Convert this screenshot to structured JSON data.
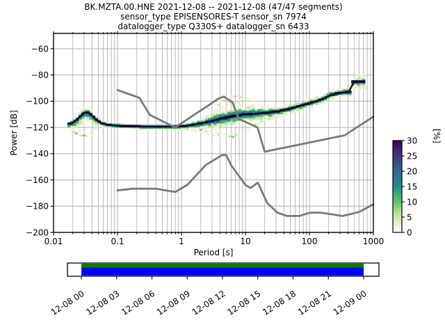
{
  "title": {
    "line1": "BK.MZTA.00.HNE   2021-12-08 -- 2021-12-08  (47/47 segments)",
    "line2": "sensor_type EPISENSORES-T sensor_sn 7974",
    "line3": "datalogger_type Q330S+ datalogger_sn 6433"
  },
  "chart_data": {
    "type": "heatmap",
    "description": "Probabilistic power spectral density (PPSD) 2D histogram of seismic noise power vs period, with Peterson NLNM/NHNM reference noise model curves and a percent-probability colorbar",
    "xlabel": "Period [s]",
    "ylabel": "Power [dB]",
    "xlim": [
      0.01,
      1000
    ],
    "ylim": [
      -200,
      -50
    ],
    "x_scale": "log",
    "grid": true,
    "grid_color": "#b0b0b0",
    "x_tick_labels": [
      "0.01",
      "0.1",
      "1",
      "10",
      "100",
      "1000"
    ],
    "x_tick_values": [
      0.01,
      0.1,
      1,
      10,
      100,
      1000
    ],
    "y_tick_labels": [
      "−60",
      "−80",
      "−100",
      "−120",
      "−140",
      "−160",
      "−180",
      "−200"
    ],
    "y_tick_values": [
      -60,
      -80,
      -100,
      -120,
      -140,
      -160,
      -180,
      -200
    ],
    "colorbar": {
      "label": "[%]",
      "tick_labels": [
        "0",
        "5",
        "10",
        "15",
        "20",
        "25",
        "30"
      ],
      "tick_values": [
        0,
        5,
        10,
        15,
        20,
        25,
        30
      ],
      "range": [
        0,
        30
      ],
      "gradient_bottom_to_top": [
        [
          0.0,
          "#ffffff"
        ],
        [
          0.167,
          "#cfe8a9"
        ],
        [
          0.333,
          "#5ec962"
        ],
        [
          0.5,
          "#21918c"
        ],
        [
          0.667,
          "#31688e"
        ],
        [
          0.833,
          "#443983"
        ],
        [
          1.0,
          "#440154"
        ]
      ]
    },
    "noise_models": {
      "color": "#7a7a7a",
      "nlnm": [
        [
          0.1,
          -168.0
        ],
        [
          0.17,
          -166.7
        ],
        [
          0.4,
          -166.7
        ],
        [
          0.8,
          -169.2
        ],
        [
          1.24,
          -163.7
        ],
        [
          2.4,
          -148.6
        ],
        [
          4.3,
          -141.1
        ],
        [
          5.0,
          -141.1
        ],
        [
          6.0,
          -149.0
        ],
        [
          10.0,
          -163.8
        ],
        [
          12.0,
          -166.2
        ],
        [
          15.6,
          -162.1
        ],
        [
          21.9,
          -177.5
        ],
        [
          31.6,
          -185.0
        ],
        [
          45.0,
          -187.5
        ],
        [
          70.0,
          -187.5
        ],
        [
          101.0,
          -185.0
        ],
        [
          154.0,
          -185.0
        ],
        [
          328.0,
          -187.5
        ],
        [
          600.0,
          -184.4
        ],
        [
          1000.0,
          -178.5
        ]
      ],
      "nhnm": [
        [
          0.1,
          -91.5
        ],
        [
          0.22,
          -97.4
        ],
        [
          0.32,
          -110.5
        ],
        [
          0.8,
          -120.0
        ],
        [
          3.8,
          -98.0
        ],
        [
          4.6,
          -96.5
        ],
        [
          6.3,
          -101.0
        ],
        [
          7.9,
          -113.5
        ],
        [
          15.4,
          -120.0
        ],
        [
          20.0,
          -138.5
        ],
        [
          354.8,
          -126.0
        ],
        [
          1000.0,
          -111.8
        ]
      ]
    },
    "ppsd": {
      "mode_curve_p_db_up_down": [
        [
          0.017,
          -117.5,
          3.5,
          5.0
        ],
        [
          0.019,
          -116.8,
          4.0,
          6.5
        ],
        [
          0.022,
          -115.0,
          4.5,
          8.0
        ],
        [
          0.026,
          -111.5,
          4.5,
          10.0
        ],
        [
          0.03,
          -108.8,
          4.5,
          11.0
        ],
        [
          0.034,
          -108.2,
          4.5,
          11.0
        ],
        [
          0.039,
          -110.5,
          4.0,
          9.0
        ],
        [
          0.046,
          -114.0,
          3.5,
          6.5
        ],
        [
          0.055,
          -116.5,
          3.0,
          4.0
        ],
        [
          0.065,
          -117.7,
          2.5,
          3.0
        ],
        [
          0.08,
          -118.4,
          2.2,
          2.6
        ],
        [
          0.11,
          -118.7,
          2.2,
          2.4
        ],
        [
          0.16,
          -119.1,
          2.2,
          2.4
        ],
        [
          0.25,
          -119.4,
          2.2,
          2.4
        ],
        [
          0.45,
          -119.5,
          2.2,
          2.6
        ],
        [
          0.8,
          -119.4,
          2.6,
          3.2
        ],
        [
          1.2,
          -118.8,
          3.2,
          4.5
        ],
        [
          1.8,
          -117.3,
          4.5,
          6.5
        ],
        [
          2.6,
          -115.8,
          7.0,
          8.0
        ],
        [
          4.0,
          -113.5,
          11.0,
          10.0
        ],
        [
          6.0,
          -111.6,
          14.5,
          11.0
        ],
        [
          9.0,
          -110.3,
          14.0,
          9.5
        ],
        [
          14,
          -109.6,
          9.0,
          8.0
        ],
        [
          22,
          -108.7,
          6.0,
          7.5
        ],
        [
          33,
          -107.7,
          5.0,
          6.5
        ],
        [
          48,
          -105.9,
          4.5,
          5.5
        ],
        [
          70,
          -103.7,
          4.5,
          5.0
        ],
        [
          95,
          -101.9,
          4.5,
          5.0
        ],
        [
          130,
          -99.9,
          4.5,
          5.0
        ],
        [
          170,
          -97.9,
          4.5,
          5.0
        ],
        [
          215,
          -95.3,
          4.5,
          5.0
        ],
        [
          290,
          -93.7,
          4.5,
          5.0
        ],
        [
          430,
          -93.0,
          4.5,
          5.0
        ],
        [
          455,
          -88.5,
          5.0,
          6.0
        ],
        [
          470,
          -85.3,
          5.0,
          6.0
        ],
        [
          700,
          -85.1,
          5.0,
          7.0
        ]
      ],
      "period_range": [
        0.0165,
        740
      ],
      "mode_line_color": "#0d0826",
      "band_layers": [
        {
          "color": "#ecf4d6",
          "f": 0.75,
          "cap": 7.0,
          "min": 1.6,
          "skip": 0.35
        },
        {
          "color": "#c9e5a1",
          "f": 0.5,
          "cap": 5.0,
          "min": 1.4,
          "skip": 0.22
        },
        {
          "color": "#55b567",
          "f": 0.34,
          "cap": 3.6,
          "min": 1.2,
          "skip": 0.08
        },
        {
          "color": "#1f948c",
          "f": 0.22,
          "cap": 2.6,
          "min": 1.0,
          "skip": 0.0
        },
        {
          "color": "#2f668c",
          "f": 0.14,
          "cap": 1.8,
          "min": 0.9,
          "skip": 0.0
        },
        {
          "color": "#342060",
          "f": 0.08,
          "cap": 1.2,
          "min": 0.8,
          "skip": 0.0
        }
      ],
      "outliers_pale": [
        [
          2.6,
          -105.5
        ],
        [
          3.2,
          -102.5
        ],
        [
          4.0,
          -100.2
        ],
        [
          5.0,
          -98.2
        ],
        [
          6.0,
          -96.8
        ],
        [
          7.5,
          -95.8
        ],
        [
          9.0,
          -96.2
        ],
        [
          11,
          -97.6
        ],
        [
          13,
          -99.6
        ],
        [
          16,
          -102.2
        ],
        [
          19,
          -104.6
        ],
        [
          3.4,
          -106.8
        ],
        [
          4.4,
          -104.6
        ],
        [
          5.4,
          -102.4
        ],
        [
          6.6,
          -100.6
        ],
        [
          8.2,
          -99.2
        ],
        [
          10,
          -101.0
        ],
        [
          12,
          -103.4
        ],
        [
          14.5,
          -105.8
        ],
        [
          5.0,
          -106.8
        ],
        [
          6.0,
          -105.0
        ],
        [
          7.0,
          -103.4
        ],
        [
          8.5,
          -104.8
        ],
        [
          10.5,
          -106.6
        ],
        [
          1.7,
          -122.6
        ],
        [
          2.1,
          -124.0
        ],
        [
          2.6,
          -125.4
        ],
        [
          3.2,
          -126.4
        ],
        [
          4.0,
          -127.2
        ],
        [
          5.0,
          -127.8
        ],
        [
          6.2,
          -128.0
        ],
        [
          7.6,
          -126.6
        ],
        [
          9.2,
          -124.4
        ],
        [
          11,
          -122.0
        ],
        [
          2.3,
          -121.2
        ],
        [
          2.9,
          -122.8
        ],
        [
          3.6,
          -124.2
        ],
        [
          4.6,
          -125.2
        ],
        [
          13,
          -119.6
        ],
        [
          16,
          -117.2
        ],
        [
          20,
          -115.0
        ],
        [
          26,
          -113.2
        ],
        [
          32,
          -112.0
        ],
        [
          0.019,
          -122.6
        ],
        [
          0.022,
          -124.2
        ],
        [
          0.027,
          -126.0
        ],
        [
          0.032,
          -127.0
        ],
        [
          0.038,
          -125.0
        ],
        [
          0.02,
          -120.6
        ],
        [
          0.025,
          -122.4
        ],
        [
          0.046,
          -121.0
        ],
        [
          0.06,
          -120.0
        ],
        [
          0.024,
          -105.4
        ],
        [
          0.03,
          -103.6
        ],
        [
          0.037,
          -104.8
        ],
        [
          600,
          -80.5
        ],
        [
          660,
          -80.0
        ],
        [
          730,
          -80.5
        ],
        [
          730,
          -90.0
        ],
        [
          640,
          -90.5
        ]
      ],
      "outliers_light": [
        [
          4.6,
          -99.4
        ],
        [
          6.8,
          -96.4
        ],
        [
          8.6,
          -97.0
        ],
        [
          3.8,
          -103.0
        ],
        [
          5.8,
          -100.8
        ],
        [
          10.8,
          -99.8
        ],
        [
          0.021,
          -123.2
        ],
        [
          0.028,
          -126.2
        ],
        [
          2.4,
          -123.2
        ],
        [
          3.8,
          -125.8
        ],
        [
          5.6,
          -126.8
        ],
        [
          7.2,
          -125.6
        ],
        [
          14,
          -117.8
        ],
        [
          18,
          -115.4
        ],
        [
          24,
          -113.6
        ]
      ],
      "outliers_green": [
        [
          0.023,
          -124.6
        ],
        [
          0.03,
          -126.2
        ],
        [
          2.0,
          -121.8
        ],
        [
          6.4,
          -127.2
        ]
      ],
      "outlier_colors": {
        "pale": "#e9f3d2",
        "light": "#c9e5a0",
        "green": "#7cc87a"
      }
    }
  },
  "coverage": {
    "tick_labels": [
      "12-08 00",
      "12-08 03",
      "12-08 06",
      "12-08 09",
      "12-08 12",
      "12-08 15",
      "12-08 18",
      "12-08 21",
      "12-09 00"
    ],
    "psd_segments_color": "#008000",
    "data_color": "#0000ff",
    "border_color": "#000000"
  }
}
